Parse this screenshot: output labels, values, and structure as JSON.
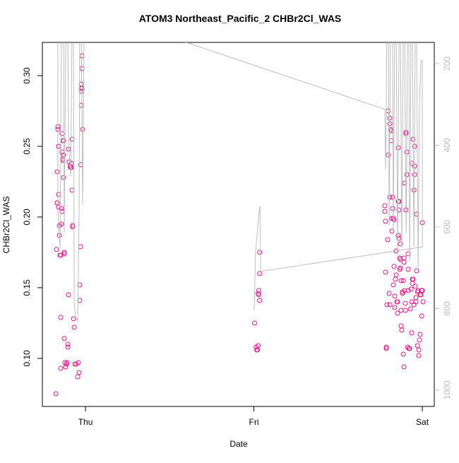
{
  "chart_data": {
    "type": "scatter",
    "title": "ATOM3 Northeast_Pacific_2 CHBr2Cl_WAS",
    "x_label": "Date",
    "y_label": "CHBr2Cl_WAS",
    "xlim": [
      -0.256,
      2.071
    ],
    "xticks": [
      {
        "value": 0,
        "label": "Thu"
      },
      {
        "value": 1,
        "label": "Fri"
      },
      {
        "value": 2,
        "label": "Sat"
      }
    ],
    "ylim": [
      0.066,
      0.3235
    ],
    "yticks": [
      {
        "value": 0.1,
        "label": "0.10"
      },
      0.15,
      {
        "value": 0.2,
        "label": "0.20"
      },
      0.25,
      {
        "value": 0.3,
        "label": "0.30"
      }
    ],
    "y2lim": [
      1040,
      148
    ],
    "y2ticks": [
      200,
      400,
      600,
      800,
      1000
    ],
    "series": [
      {
        "color": "#e8158c",
        "x": [
          -0.176,
          -0.172,
          -0.168,
          -0.168,
          -0.168,
          -0.164,
          -0.164,
          -0.16,
          -0.16,
          -0.16,
          -0.16,
          -0.155,
          -0.155,
          -0.151,
          -0.147,
          -0.147,
          -0.147,
          -0.143,
          -0.143,
          -0.139,
          -0.139,
          -0.139,
          -0.134,
          -0.134,
          -0.134,
          -0.13,
          -0.13,
          -0.13,
          -0.126,
          -0.126,
          -0.126,
          -0.122,
          -0.118,
          -0.113,
          -0.109,
          -0.105,
          -0.105,
          -0.101,
          -0.101,
          -0.097,
          -0.092,
          -0.088,
          -0.084,
          -0.084,
          -0.08,
          -0.08,
          -0.076,
          -0.076,
          -0.071,
          -0.067,
          -0.063,
          -0.055,
          -0.046,
          -0.042,
          -0.038,
          -0.034,
          -0.034,
          -0.029,
          -0.029,
          -0.025,
          -0.025,
          -0.025,
          -0.021,
          -0.025,
          -0.021,
          -0.021,
          -0.017,
          1.004,
          1.013,
          1.017,
          1.021,
          1.025,
          1.025,
          1.029,
          1.034,
          1.029,
          1.034,
          1.034,
          1.777,
          1.777,
          1.781,
          1.781,
          1.786,
          1.786,
          1.79,
          1.794,
          1.798,
          1.798,
          1.803,
          1.807,
          1.807,
          1.807,
          1.807,
          1.811,
          1.815,
          1.815,
          1.819,
          1.819,
          1.824,
          1.824,
          1.828,
          1.828,
          1.832,
          1.832,
          1.836,
          1.836,
          1.84,
          1.845,
          1.845,
          1.849,
          1.853,
          1.853,
          1.857,
          1.857,
          1.857,
          1.861,
          1.861,
          1.861,
          1.866,
          1.866,
          1.87,
          1.87,
          1.87,
          1.874,
          1.874,
          1.874,
          1.878,
          1.882,
          1.882,
          1.887,
          1.887,
          1.891,
          1.891,
          1.891,
          1.895,
          1.895,
          1.899,
          1.899,
          1.903,
          1.903,
          1.903,
          1.908,
          1.908,
          1.912,
          1.916,
          1.916,
          1.916,
          1.92,
          1.924,
          1.929,
          1.933,
          1.937,
          1.937,
          1.937,
          1.941,
          1.941,
          1.945,
          1.945,
          1.95,
          1.95,
          1.954,
          1.954,
          1.954,
          1.958,
          1.962,
          1.962,
          1.966,
          1.966,
          1.971,
          1.971,
          1.975,
          1.979,
          1.979,
          1.983,
          1.987,
          1.987,
          1.992,
          1.996,
          1.996,
          2.0,
          2.0,
          2.004
        ],
        "values": [
          0.075,
          0.177,
          0.232,
          0.21,
          0.21,
          0.264,
          0.262,
          0.25,
          0.25,
          0.216,
          0.207,
          0.194,
          0.187,
          0.173,
          0.173,
          0.093,
          0.129,
          0.195,
          0.206,
          0.204,
          0.259,
          0.246,
          0.254,
          0.241,
          0.24,
          0.228,
          0.244,
          0.254,
          0.114,
          0.174,
          0.175,
          0.097,
          0.094,
          0.096,
          0.097,
          0.11,
          0.108,
          0.145,
          0.248,
          0.239,
          0.236,
          0.235,
          0.235,
          0.238,
          0.255,
          0.219,
          0.193,
          0.194,
          0.128,
          0.122,
          0.096,
          0.096,
          0.087,
          0.097,
          0.09,
          0.152,
          0.141,
          0.179,
          0.237,
          0.279,
          0.291,
          0.289,
          0.291,
          0.294,
          0.305,
          0.314,
          0.262,
          0.125,
          0.108,
          0.106,
          0.106,
          0.109,
          0.146,
          0.148,
          0.141,
          0.145,
          0.16,
          0.175,
          0.208,
          0.204,
          0.197,
          0.161,
          0.108,
          0.107,
          0.138,
          0.184,
          0.275,
          0.244,
          0.146,
          0.138,
          0.214,
          0.266,
          0.27,
          0.262,
          0.261,
          0.254,
          0.19,
          0.199,
          0.214,
          0.206,
          0.199,
          0.152,
          0.165,
          0.198,
          0.144,
          0.136,
          0.156,
          0.176,
          0.159,
          0.14,
          0.132,
          0.14,
          0.249,
          0.211,
          0.187,
          0.185,
          0.211,
          0.205,
          0.171,
          0.163,
          0.164,
          0.181,
          0.17,
          0.155,
          0.134,
          0.123,
          0.12,
          0.147,
          0.146,
          0.155,
          0.103,
          0.094,
          0.168,
          0.171,
          0.224,
          0.148,
          0.139,
          0.134,
          0.205,
          0.26,
          0.259,
          0.246,
          0.23,
          0.108,
          0.163,
          0.174,
          0.148,
          0.107,
          0.107,
          0.135,
          0.149,
          0.118,
          0.238,
          0.14,
          0.156,
          0.153,
          0.255,
          0.156,
          0.138,
          0.219,
          0.25,
          0.236,
          0.23,
          0.151,
          0.14,
          0.143,
          0.162,
          0.202,
          0.147,
          0.109,
          0.148,
          0.106,
          0.102,
          0.113,
          0.117,
          0.145,
          0.145,
          0.148,
          0.13,
          0.148,
          0.196,
          0.14
        ]
      },
      {
        "type": "line",
        "axis": "y2",
        "color": "#bdbdbd",
        "x": [
          -0.164,
          -0.164,
          -0.151,
          -0.143,
          -0.13,
          -0.126,
          -0.117,
          -0.105,
          -0.101,
          -0.088,
          -0.08,
          -0.071,
          -0.067,
          -0.059,
          -0.046,
          -0.038,
          -0.034,
          -0.025,
          -0.017,
          -0.008,
          0.562,
          1.778,
          1.782,
          1.79,
          1.799,
          1.803,
          1.811,
          1.824,
          1.828,
          1.836,
          1.845,
          1.853,
          1.862,
          1.87,
          1.878,
          1.887,
          1.895,
          1.904,
          1.912,
          1.92,
          1.925,
          1.933,
          1.941,
          1.95,
          1.958,
          1.966,
          1.975,
          1.983,
          1.992,
          2.0,
          2.0,
          1.04,
          1.036,
          1.031,
          1.01,
          1.002
        ],
        "values": [
          120,
          562,
          649,
          120,
          120,
          614,
          120,
          120,
          390,
          476,
          120,
          120,
          787,
          821,
          830,
          562,
          120,
          120,
          545,
          120,
          143,
          312,
          459,
          120,
          120,
          597,
          120,
          120,
          614,
          120,
          120,
          666,
          120,
          120,
          649,
          120,
          120,
          614,
          120,
          120,
          683,
          120,
          120,
          649,
          120,
          120,
          700,
          304,
          192,
          192,
          649,
          709,
          549,
          562,
          662,
          804
        ]
      }
    ]
  }
}
